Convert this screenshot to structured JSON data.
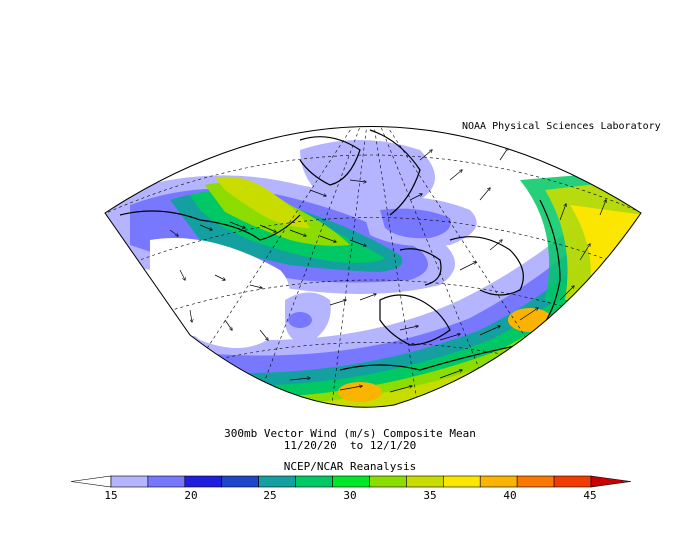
{
  "credit": "NOAA Physical Sciences Laboratory",
  "title": {
    "line1": "300mb Vector Wind (m/s) Composite Mean",
    "line2": "11/20/20  to 12/1/20",
    "line3": "NCEP/NCAR Reanalysis"
  },
  "colorbar": {
    "tick_labels": [
      "15",
      "20",
      "25",
      "30",
      "35",
      "40",
      "45"
    ],
    "colors": [
      "#ffffff",
      "#b4b4ff",
      "#7878ff",
      "#1e1edc",
      "#1e46c8",
      "#14a0a0",
      "#00c864",
      "#00e628",
      "#8cdc00",
      "#c8dc00",
      "#fae600",
      "#fab400",
      "#fa7800",
      "#f03c00",
      "#c80000"
    ]
  },
  "map": {
    "projection": "polar conic sector",
    "region": "North Atlantic / Europe",
    "variable": "300mb vector wind speed",
    "units": "m/s"
  }
}
